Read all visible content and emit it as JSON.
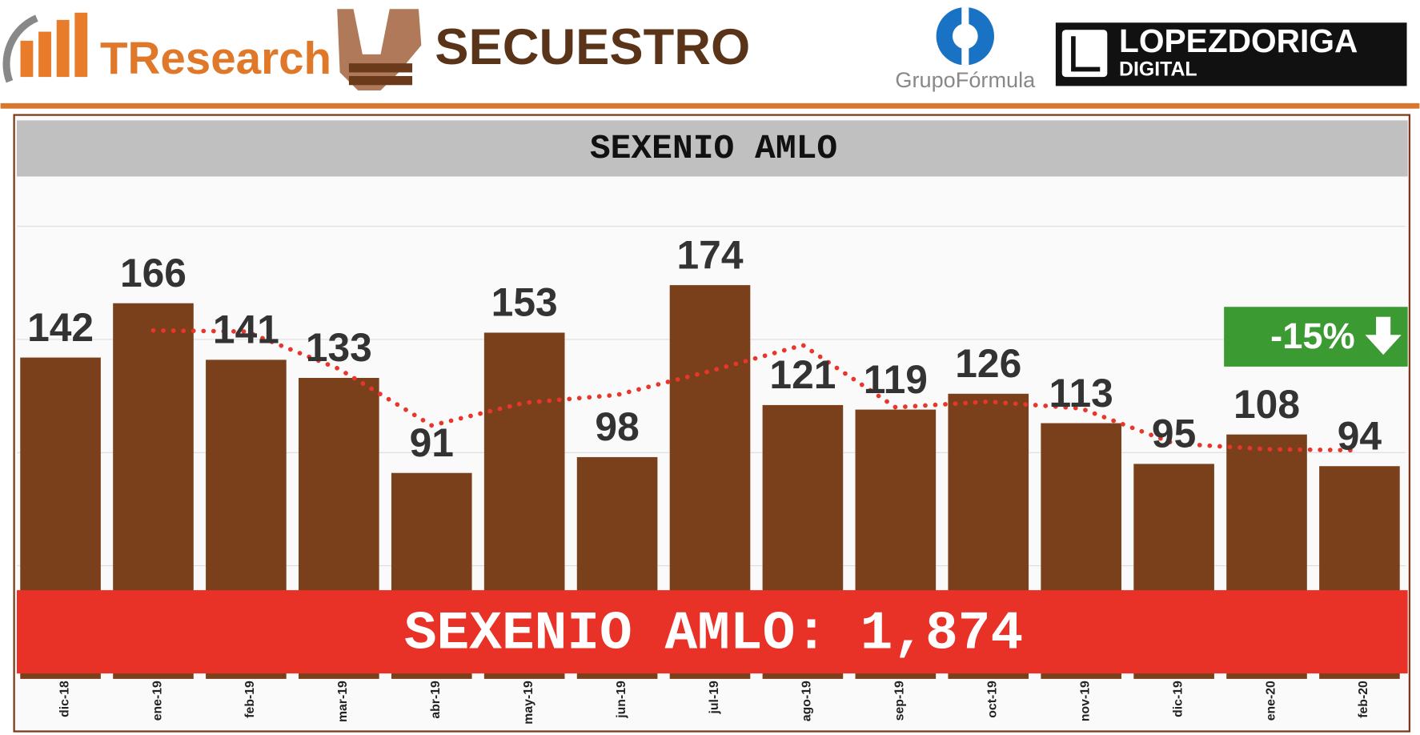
{
  "header": {
    "brand": "TResearch",
    "topic": "SECUESTRO",
    "partner": "GrupoFórmula",
    "media": "LOPEZDORIGA",
    "media_sub": "DIGITAL"
  },
  "chart_data": {
    "type": "bar",
    "title": "SEXENIO AMLO",
    "categories": [
      "dic-18",
      "ene-19",
      "feb-19",
      "mar-19",
      "abr-19",
      "may-19",
      "jun-19",
      "jul-19",
      "ago-19",
      "sep-19",
      "oct-19",
      "nov-19",
      "dic-19",
      "ene-20",
      "feb-20"
    ],
    "series": [
      {
        "values": [
          142,
          166,
          141,
          133,
          91,
          153,
          98,
          174,
          121,
          119,
          126,
          113,
          95,
          108,
          94
        ],
        "color": "#7a401c"
      },
      {
        "values": [
          null,
          154,
          153.5,
          137,
          112,
          122,
          125.5,
          136,
          147.5,
          120,
          122.5,
          119.5,
          104,
          101.5,
          101
        ],
        "color": "#e8362a",
        "style": "dotted"
      }
    ],
    "ylim": [
      0,
      222
    ],
    "yticks": [
      50,
      100,
      150,
      200
    ],
    "grid": true,
    "badge": "-15%",
    "banner": "SEXENIO AMLO: 1,874"
  }
}
